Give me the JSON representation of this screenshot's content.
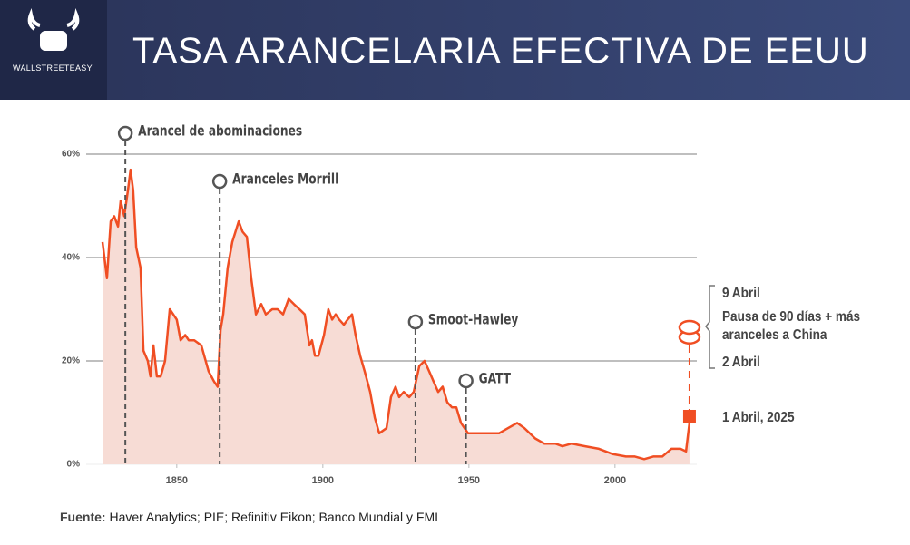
{
  "header": {
    "logo": "WALLSTREETEASY",
    "title": "TASA ARANCELARIA EFECTIVA DE EEUU"
  },
  "chart_data": {
    "type": "area",
    "x": [
      1824.6,
      1826.1,
      1827.4,
      1828.6,
      1829.9,
      1830.8,
      1832,
      1833.3,
      1834.2,
      1835.1,
      1836.1,
      1837.6,
      1838.6,
      1840.1,
      1841,
      1842,
      1843.2,
      1844.5,
      1846,
      1847.6,
      1848.8,
      1850,
      1851.3,
      1852.9,
      1854.1,
      1856,
      1858.4,
      1860.9,
      1862.8,
      1864,
      1865,
      1865.9,
      1867.4,
      1869,
      1871.2,
      1872.5,
      1874,
      1875.5,
      1877.1,
      1878.9,
      1880.5,
      1882.7,
      1884.5,
      1886.4,
      1888.3,
      1890.1,
      1892,
      1893.8,
      1895.4,
      1896.3,
      1897.3,
      1898.5,
      1900.4,
      1901.9,
      1903.2,
      1904.4,
      1905.6,
      1907.2,
      1908.5,
      1910,
      1911.2,
      1912.8,
      1914.3,
      1916.2,
      1917.8,
      1919.3,
      1921.8,
      1923.3,
      1924.9,
      1926.1,
      1927.7,
      1929.6,
      1931.1,
      1933,
      1934.8,
      1936.4,
      1937.9,
      1939.5,
      1941,
      1942.6,
      1944.2,
      1945.7,
      1947.3,
      1948.5,
      1949.7,
      1951,
      1954,
      1957.2,
      1960.3,
      1963.4,
      1966.5,
      1969,
      1972.7,
      1975.8,
      1979.6,
      1982,
      1985.1,
      1989.8,
      1994.5,
      1999.1,
      2003.7,
      2006.8,
      2010,
      2013.1,
      2016.2,
      2019.3,
      2022.4,
      2024.3,
      2025.5
    ],
    "values": [
      43,
      36,
      47,
      48,
      46,
      51,
      48,
      53,
      57,
      53,
      42,
      38,
      22,
      20,
      17,
      23,
      17,
      17,
      20,
      30,
      29,
      28,
      24,
      25,
      24,
      24,
      23,
      18,
      16,
      15,
      26,
      29,
      38,
      43,
      47,
      45,
      44,
      36,
      29,
      31,
      29,
      30,
      30,
      29,
      32,
      31,
      30,
      29,
      23,
      24,
      21,
      21,
      25,
      30,
      28,
      29,
      28,
      27,
      28,
      29,
      25,
      21,
      18,
      14,
      9,
      6,
      7,
      13,
      15,
      13,
      14,
      13,
      14,
      19,
      20,
      18,
      16,
      14,
      15,
      12,
      11,
      11,
      8,
      7,
      6,
      6,
      6,
      6,
      6,
      7,
      8,
      7,
      5,
      4,
      4,
      3.5,
      4,
      3.5,
      3,
      2,
      1.5,
      1.5,
      1,
      1.5,
      1.5,
      3,
      3,
      2.5,
      8
    ],
    "xlim": [
      1819,
      2028
    ],
    "ylim": [
      0,
      70
    ],
    "xticks": [
      1850,
      1900,
      1950,
      2000
    ],
    "yticks": [
      {
        "value": 0,
        "label": "0%"
      },
      {
        "value": 20,
        "label": "20%"
      },
      {
        "value": 40,
        "label": "40%"
      },
      {
        "value": 60,
        "label": "60%"
      }
    ],
    "color": "#f04e23",
    "fill": "#f7dcd5",
    "grid": true,
    "events": [
      {
        "label": "Arancel de abominaciones",
        "x": 1832.4
      },
      {
        "label": "Aranceles Morrill",
        "x": 1864.7
      },
      {
        "label": "Smoot-Hawley",
        "x": 1931.7
      },
      {
        "label": "GATT",
        "x": 1949
      }
    ],
    "points": [
      {
        "label": "1 Abril, 2025",
        "x": 2025.5,
        "y": 9.3
      },
      {
        "label": "2 Abril",
        "x": 2025.5,
        "y": 24.6
      },
      {
        "label": "9 Abril",
        "x": 2025.5,
        "y": 26.5
      }
    ],
    "note": [
      "Pausa de 90 días + más",
      "aranceles a China"
    ]
  },
  "source": {
    "label": "Fuente:",
    "text": "Haver Analytics; PIE; Refinitiv Eikon; Banco Mundial y FMI"
  }
}
